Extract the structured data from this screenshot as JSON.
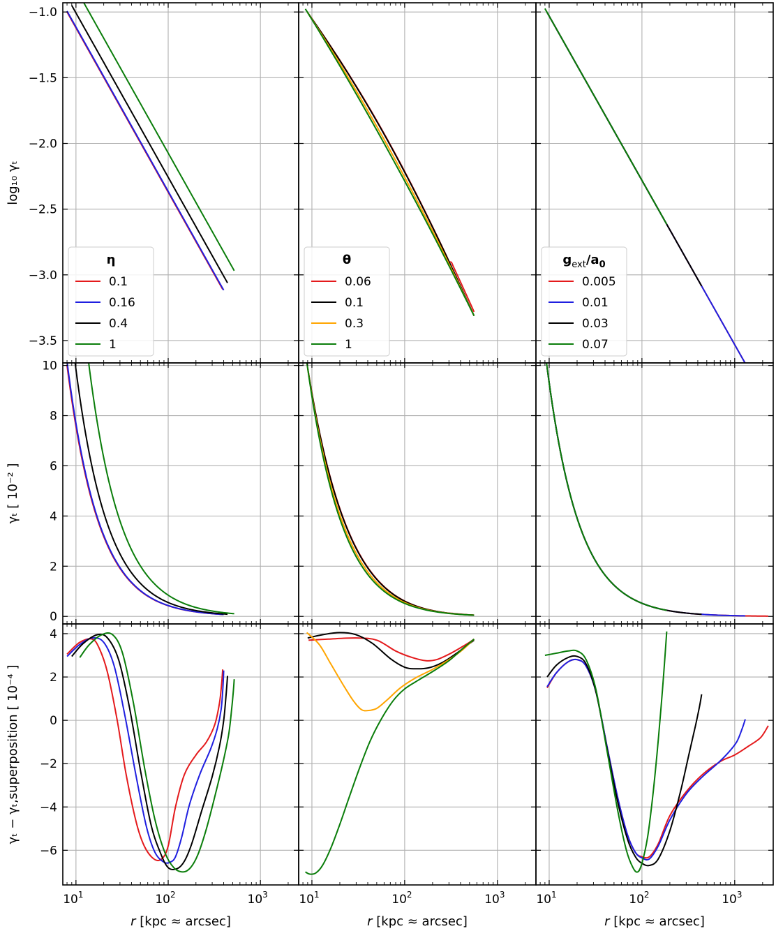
{
  "figure": {
    "colors": {
      "red": "#e41a1c",
      "blue": "#1f1fe0",
      "black": "#000000",
      "orange": "#ffa500",
      "green": "#0a7d0a"
    }
  },
  "chart_data": {
    "type": "line",
    "xscale": "log",
    "xlim": [
      7.2,
      2600
    ],
    "xticks": [
      10,
      100,
      1000
    ],
    "xtick_labels": [
      [
        "10",
        "1"
      ],
      [
        "10",
        "2"
      ],
      [
        "10",
        "3"
      ]
    ],
    "xlabel": {
      "italic": "r",
      "rest": " [kpc ≈ arcsec]"
    },
    "rows": [
      {
        "id": "log",
        "ylim": [
          -3.67,
          -0.93
        ],
        "yticks": [
          -1.0,
          -1.5,
          -2.0,
          -2.5,
          -3.0,
          -3.5
        ],
        "ytick_labels": [
          "−1.0",
          "−1.5",
          "−2.0",
          "−2.5",
          "−3.0",
          "−3.5"
        ],
        "ylabel": "log₁₀ γₜ"
      },
      {
        "id": "lin",
        "ylim": [
          -0.3,
          10.1
        ],
        "yticks": [
          0,
          2,
          4,
          6,
          8,
          10
        ],
        "ytick_labels": [
          "0",
          "2",
          "4",
          "6",
          "8",
          "10"
        ],
        "ylabel": "γₜ [ 10⁻² ]"
      },
      {
        "id": "diff",
        "ylim": [
          -7.6,
          4.45
        ],
        "yticks": [
          4,
          2,
          0,
          -2,
          -4,
          -6
        ],
        "ytick_labels": [
          "4",
          "2",
          "0",
          "−2",
          "−4",
          "−6"
        ],
        "ylabel": "γₜ − γₜ,superposition [ 10⁻⁴ ]"
      }
    ],
    "columns": [
      {
        "legend_title": "η",
        "series": [
          {
            "name": "0.1",
            "color": "red",
            "rmin": 8.0,
            "rmax": 390,
            "diff": [
              [
                8,
                3.05
              ],
              [
                11,
                3.6
              ],
              [
                15,
                3.75
              ],
              [
                18,
                3.3
              ],
              [
                22,
                2.2
              ],
              [
                28,
                0.0
              ],
              [
                35,
                -2.5
              ],
              [
                45,
                -4.7
              ],
              [
                55,
                -5.8
              ],
              [
                70,
                -6.4
              ],
              [
                85,
                -6.4
              ],
              [
                100,
                -5.8
              ],
              [
                120,
                -4.0
              ],
              [
                150,
                -2.5
              ],
              [
                200,
                -1.6
              ],
              [
                260,
                -1.0
              ],
              [
                320,
                -0.2
              ],
              [
                360,
                0.8
              ],
              [
                380,
                1.7
              ],
              [
                390,
                2.35
              ]
            ]
          },
          {
            "name": "0.16",
            "color": "blue",
            "rmin": 8.0,
            "rmax": 400,
            "diff": [
              [
                8,
                2.95
              ],
              [
                11,
                3.5
              ],
              [
                15,
                3.8
              ],
              [
                20,
                3.6
              ],
              [
                26,
                2.5
              ],
              [
                34,
                0.2
              ],
              [
                45,
                -2.6
              ],
              [
                58,
                -4.9
              ],
              [
                72,
                -6.1
              ],
              [
                90,
                -6.55
              ],
              [
                105,
                -6.55
              ],
              [
                120,
                -6.3
              ],
              [
                140,
                -5.4
              ],
              [
                170,
                -3.9
              ],
              [
                220,
                -2.5
              ],
              [
                290,
                -1.3
              ],
              [
                340,
                -0.4
              ],
              [
                375,
                0.5
              ],
              [
                392,
                1.5
              ],
              [
                400,
                2.3
              ]
            ]
          },
          {
            "name": "0.4",
            "color": "black",
            "rmin": 9.0,
            "rmax": 440,
            "diff": [
              [
                9,
                2.95
              ],
              [
                12,
                3.55
              ],
              [
                17,
                3.95
              ],
              [
                22,
                3.8
              ],
              [
                29,
                2.8
              ],
              [
                38,
                0.6
              ],
              [
                50,
                -2.3
              ],
              [
                65,
                -4.8
              ],
              [
                82,
                -6.1
              ],
              [
                100,
                -6.8
              ],
              [
                125,
                -6.85
              ],
              [
                150,
                -6.5
              ],
              [
                180,
                -5.7
              ],
              [
                230,
                -4.2
              ],
              [
                300,
                -2.6
              ],
              [
                360,
                -1.2
              ],
              [
                400,
                0.0
              ],
              [
                425,
                1.2
              ],
              [
                440,
                2.05
              ]
            ]
          },
          {
            "name": "1",
            "color": "green",
            "rmin": 11.0,
            "rmax": 520,
            "diff": [
              [
                11,
                2.9
              ],
              [
                14,
                3.5
              ],
              [
                19,
                3.95
              ],
              [
                25,
                3.95
              ],
              [
                32,
                3.1
              ],
              [
                42,
                0.8
              ],
              [
                56,
                -2.3
              ],
              [
                72,
                -4.6
              ],
              [
                92,
                -6.1
              ],
              [
                115,
                -6.8
              ],
              [
                145,
                -7.0
              ],
              [
                175,
                -6.8
              ],
              [
                210,
                -6.2
              ],
              [
                260,
                -5.0
              ],
              [
                330,
                -3.3
              ],
              [
                400,
                -1.8
              ],
              [
                455,
                -0.6
              ],
              [
                490,
                0.6
              ],
              [
                510,
                1.4
              ],
              [
                520,
                1.9
              ]
            ]
          }
        ]
      },
      {
        "legend_title": "θ",
        "series": [
          {
            "name": "0.06",
            "color": "red",
            "rmin": 9.2,
            "rmax": 560,
            "diff": [
              [
                9.2,
                3.7
              ],
              [
                15,
                3.75
              ],
              [
                30,
                3.8
              ],
              [
                50,
                3.7
              ],
              [
                80,
                3.2
              ],
              [
                120,
                2.9
              ],
              [
                170,
                2.75
              ],
              [
                220,
                2.8
              ],
              [
                300,
                3.05
              ],
              [
                400,
                3.35
              ],
              [
                500,
                3.6
              ],
              [
                560,
                3.75
              ]
            ]
          },
          {
            "name": "0.1",
            "color": "black",
            "rmin": 9.0,
            "rmax": 560,
            "diff": [
              [
                9,
                3.8
              ],
              [
                13,
                3.95
              ],
              [
                20,
                4.05
              ],
              [
                30,
                3.95
              ],
              [
                45,
                3.55
              ],
              [
                70,
                2.85
              ],
              [
                100,
                2.45
              ],
              [
                130,
                2.38
              ],
              [
                180,
                2.42
              ],
              [
                250,
                2.65
              ],
              [
                350,
                3.05
              ],
              [
                450,
                3.4
              ],
              [
                560,
                3.7
              ]
            ]
          },
          {
            "name": "0.3",
            "color": "orange",
            "rmin": 8.8,
            "rmax": 560,
            "diff": [
              [
                8.8,
                4.05
              ],
              [
                12,
                3.5
              ],
              [
                16,
                2.6
              ],
              [
                22,
                1.6
              ],
              [
                28,
                0.9
              ],
              [
                34,
                0.5
              ],
              [
                40,
                0.45
              ],
              [
                50,
                0.55
              ],
              [
                65,
                0.95
              ],
              [
                90,
                1.5
              ],
              [
                130,
                1.95
              ],
              [
                200,
                2.35
              ],
              [
                300,
                2.8
              ],
              [
                420,
                3.25
              ],
              [
                560,
                3.75
              ]
            ]
          },
          {
            "name": "1",
            "color": "green",
            "rmin": 8.5,
            "rmax": 560,
            "diff": [
              [
                8.5,
                -7.0
              ],
              [
                9.5,
                -7.1
              ],
              [
                11,
                -7.05
              ],
              [
                13,
                -6.7
              ],
              [
                16,
                -5.9
              ],
              [
                20,
                -4.8
              ],
              [
                25,
                -3.6
              ],
              [
                32,
                -2.3
              ],
              [
                42,
                -1.0
              ],
              [
                55,
                0.0
              ],
              [
                75,
                0.9
              ],
              [
                100,
                1.45
              ],
              [
                140,
                1.85
              ],
              [
                200,
                2.25
              ],
              [
                300,
                2.75
              ],
              [
                420,
                3.3
              ],
              [
                560,
                3.75
              ]
            ]
          }
        ]
      },
      {
        "legend_title": "g_ext/a_0",
        "series": [
          {
            "name": "0.005",
            "color": "red",
            "rmin": 9.5,
            "rmax": 2300,
            "diff": [
              [
                9.5,
                1.5
              ],
              [
                12,
                2.2
              ],
              [
                16,
                2.7
              ],
              [
                20,
                2.8
              ],
              [
                25,
                2.5
              ],
              [
                32,
                1.3
              ],
              [
                42,
                -1.2
              ],
              [
                55,
                -3.6
              ],
              [
                70,
                -5.3
              ],
              [
                85,
                -6.1
              ],
              [
                100,
                -6.3
              ],
              [
                120,
                -6.3
              ],
              [
                150,
                -5.7
              ],
              [
                200,
                -4.4
              ],
              [
                300,
                -3.3
              ],
              [
                450,
                -2.5
              ],
              [
                700,
                -1.9
              ],
              [
                1000,
                -1.6
              ],
              [
                1400,
                -1.2
              ],
              [
                1900,
                -0.8
              ],
              [
                2300,
                -0.25
              ]
            ]
          },
          {
            "name": "0.01",
            "color": "blue",
            "rmin": 9.5,
            "rmax": 1300,
            "diff": [
              [
                9.5,
                1.55
              ],
              [
                12,
                2.2
              ],
              [
                16,
                2.7
              ],
              [
                20,
                2.8
              ],
              [
                25,
                2.5
              ],
              [
                32,
                1.3
              ],
              [
                42,
                -1.2
              ],
              [
                55,
                -3.6
              ],
              [
                70,
                -5.3
              ],
              [
                85,
                -6.1
              ],
              [
                100,
                -6.35
              ],
              [
                120,
                -6.4
              ],
              [
                150,
                -5.8
              ],
              [
                200,
                -4.6
              ],
              [
                300,
                -3.4
              ],
              [
                450,
                -2.6
              ],
              [
                650,
                -2.0
              ],
              [
                850,
                -1.5
              ],
              [
                1050,
                -1.0
              ],
              [
                1200,
                -0.4
              ],
              [
                1300,
                0.05
              ]
            ]
          },
          {
            "name": "0.03",
            "color": "black",
            "rmin": 9.5,
            "rmax": 440,
            "diff": [
              [
                9.5,
                2.0
              ],
              [
                12,
                2.55
              ],
              [
                16,
                2.9
              ],
              [
                20,
                2.95
              ],
              [
                25,
                2.6
              ],
              [
                32,
                1.3
              ],
              [
                42,
                -1.3
              ],
              [
                55,
                -3.8
              ],
              [
                70,
                -5.5
              ],
              [
                85,
                -6.3
              ],
              [
                100,
                -6.6
              ],
              [
                120,
                -6.7
              ],
              [
                150,
                -6.4
              ],
              [
                200,
                -5.1
              ],
              [
                260,
                -3.3
              ],
              [
                320,
                -1.6
              ],
              [
                380,
                -0.2
              ],
              [
                420,
                0.7
              ],
              [
                440,
                1.2
              ]
            ]
          },
          {
            "name": "0.07",
            "color": "green",
            "rmin": 9.0,
            "rmax": 185,
            "diff": [
              [
                9,
                3.0
              ],
              [
                12,
                3.1
              ],
              [
                16,
                3.2
              ],
              [
                20,
                3.2
              ],
              [
                25,
                2.8
              ],
              [
                32,
                1.4
              ],
              [
                42,
                -1.4
              ],
              [
                55,
                -4.2
              ],
              [
                68,
                -6.0
              ],
              [
                80,
                -6.8
              ],
              [
                90,
                -7.0
              ],
              [
                100,
                -6.6
              ],
              [
                115,
                -5.4
              ],
              [
                130,
                -3.6
              ],
              [
                145,
                -1.6
              ],
              [
                160,
                0.5
              ],
              [
                172,
                2.2
              ],
              [
                185,
                4.1
              ]
            ]
          }
        ]
      }
    ]
  }
}
